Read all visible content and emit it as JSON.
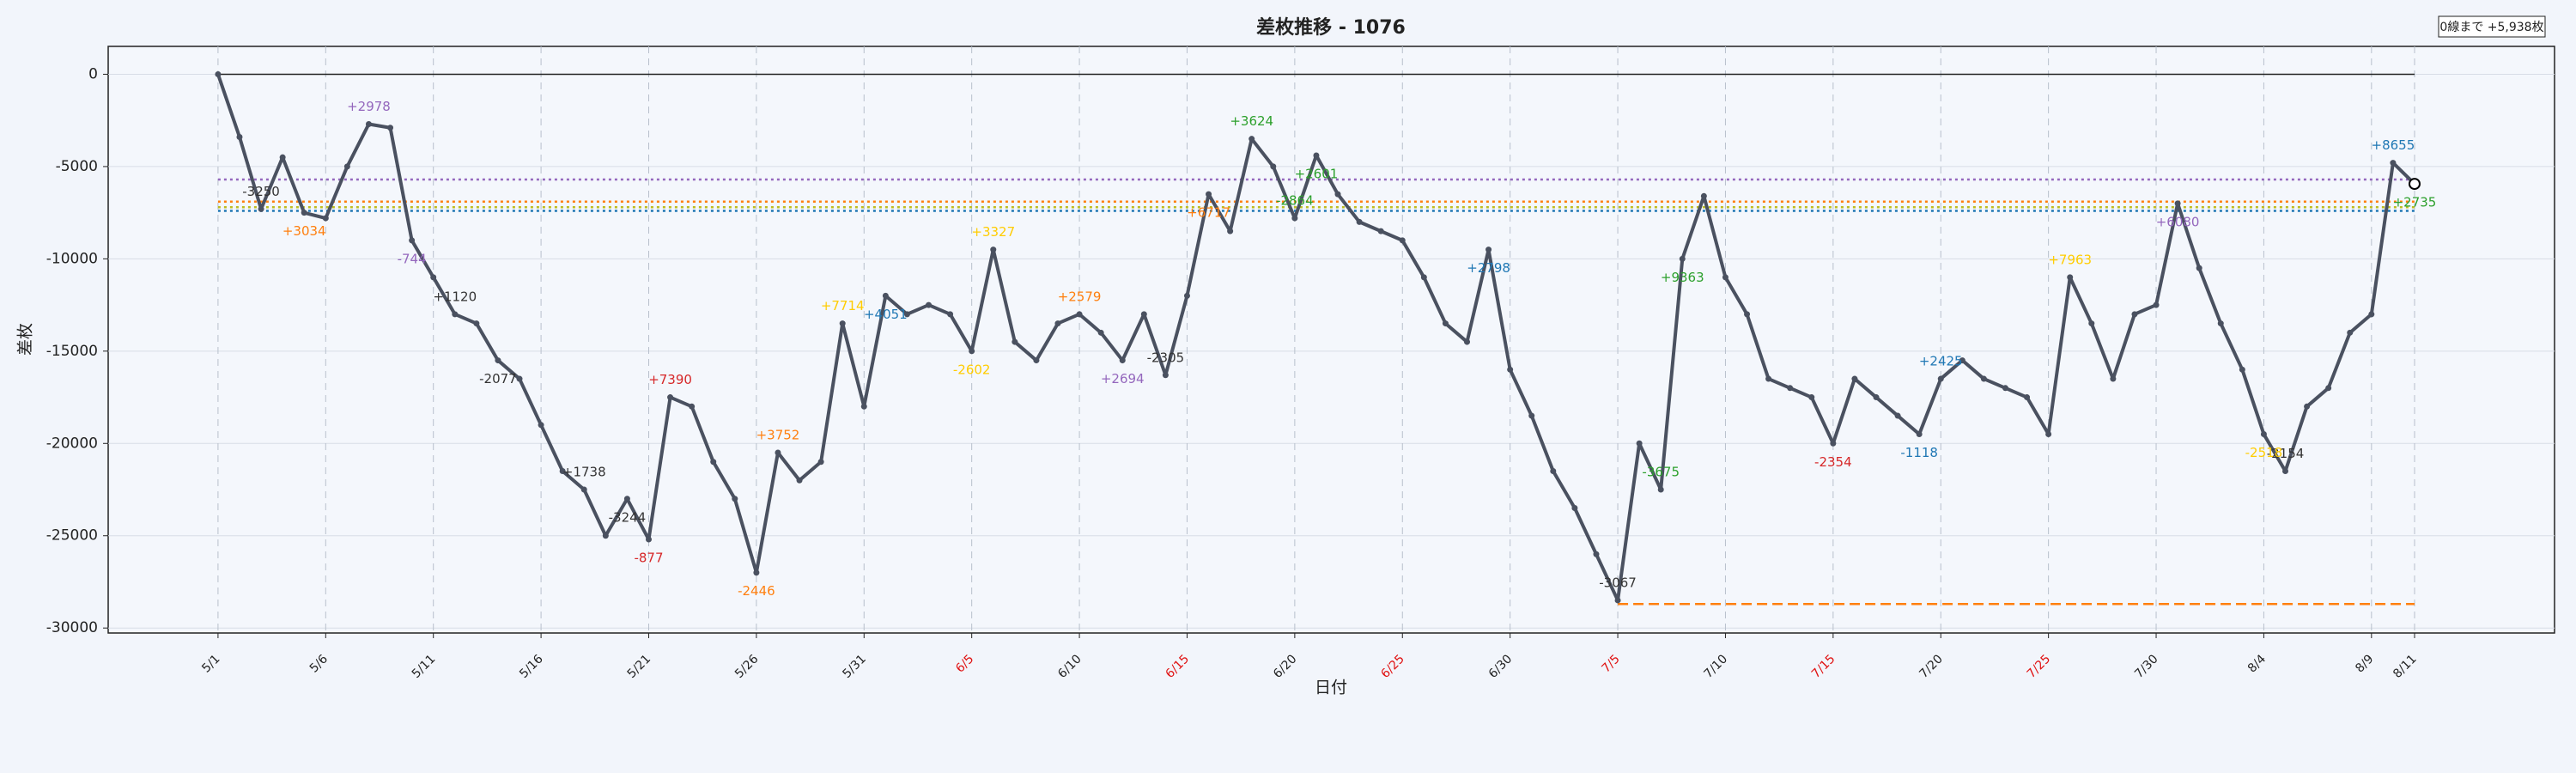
{
  "chart_data": {
    "type": "line",
    "title": "差枚推移 - 1076",
    "xlabel": "日付",
    "ylabel": "差枚",
    "note": "0線まで +5,938枚",
    "categories": [
      "5/1",
      null,
      null,
      null,
      null,
      "5/6",
      null,
      null,
      null,
      null,
      "5/11",
      null,
      null,
      null,
      null,
      "5/16",
      null,
      null,
      null,
      null,
      "5/21",
      null,
      null,
      null,
      null,
      "5/26",
      null,
      null,
      null,
      null,
      "5/31",
      null,
      null,
      null,
      null,
      "6/5",
      null,
      null,
      null,
      null,
      "6/10",
      null,
      null,
      null,
      null,
      "6/15",
      null,
      null,
      null,
      null,
      "6/20",
      null,
      null,
      null,
      null,
      "6/25",
      null,
      null,
      null,
      null,
      "6/30",
      null,
      null,
      null,
      null,
      "7/5",
      null,
      null,
      null,
      null,
      "7/10",
      null,
      null,
      null,
      null,
      "7/15",
      null,
      null,
      null,
      null,
      "7/20",
      null,
      null,
      null,
      null,
      "7/25",
      null,
      null,
      null,
      null,
      "7/30",
      null,
      null,
      null,
      null,
      "8/4",
      null,
      null,
      null,
      null,
      "8/9",
      null,
      "8/11"
    ],
    "highlighted_categories": [
      "6/5",
      "6/15",
      "6/25",
      "7/5",
      "7/15",
      "7/25"
    ],
    "highlight_color": "#e01010",
    "series": [
      {
        "name": "差枚",
        "color": "#4a5160",
        "values": [
          0,
          -3400,
          -7300,
          -4500,
          -7500,
          -7800,
          -5000,
          -2700,
          -2900,
          -9000,
          -11000,
          -13000,
          -13500,
          -15500,
          -16500,
          -19000,
          -21500,
          -22500,
          -25000,
          -23000,
          -25200,
          -17500,
          -18000,
          -21000,
          -23000,
          -27000,
          -20500,
          -22000,
          -21000,
          -13500,
          -18000,
          -12000,
          -13000,
          -12500,
          -13000,
          -15000,
          -9500,
          -14500,
          -15500,
          -13500,
          -13000,
          -14000,
          -15500,
          -13000,
          -16300,
          -12000,
          -6500,
          -8500,
          -3500,
          -5000,
          -7800,
          -4400,
          -6500,
          -8000,
          -8500,
          -9000,
          -11000,
          -13500,
          -14500,
          -9500,
          -16000,
          -18500,
          -21500,
          -23500,
          -26000,
          -28500,
          -20000,
          -22500,
          -10000,
          -6600,
          -11000,
          -13000,
          -16500,
          -17000,
          -17500,
          -20000,
          -16500,
          -17500,
          -18500,
          -19500,
          -16500,
          -15500,
          -16500,
          -17000,
          -17500,
          -19500,
          -11000,
          -13500,
          -16500,
          -13000,
          -12500,
          -7000,
          -10500,
          -13500,
          -16000,
          -19500,
          -21500,
          -18000,
          -17000,
          -14000,
          -13000,
          -4800,
          -5938
        ]
      }
    ],
    "annotations": [
      {
        "text": "-3250",
        "at": 2,
        "color": "#333333"
      },
      {
        "text": "+3034",
        "at": 4,
        "color": "#ff7f0e"
      },
      {
        "text": "+2978",
        "at": 7,
        "color": "#9467bd"
      },
      {
        "text": "-744",
        "at": 9,
        "color": "#9467bd"
      },
      {
        "text": "+1120",
        "at": 11,
        "color": "#333333"
      },
      {
        "text": "-2077",
        "at": 13,
        "color": "#333333"
      },
      {
        "text": "+1738",
        "at": 17,
        "color": "#333333"
      },
      {
        "text": "-3244",
        "at": 19,
        "color": "#333333"
      },
      {
        "text": "+7390",
        "at": 21,
        "color": "#d62728"
      },
      {
        "text": "-877",
        "at": 20,
        "color": "#d62728"
      },
      {
        "text": "+3752",
        "at": 26,
        "color": "#ff7f0e"
      },
      {
        "text": "-2446",
        "at": 25,
        "color": "#ff7f0e"
      },
      {
        "text": "+7714",
        "at": 29,
        "color": "#ffcc00"
      },
      {
        "text": "+4051",
        "at": 31,
        "color": "#1f77b4"
      },
      {
        "text": "+3327",
        "at": 36,
        "color": "#ffcc00"
      },
      {
        "text": "-2602",
        "at": 35,
        "color": "#ffcc00"
      },
      {
        "text": "+2579",
        "at": 40,
        "color": "#ff7f0e"
      },
      {
        "text": "+2694",
        "at": 42,
        "color": "#9467bd"
      },
      {
        "text": "-2305",
        "at": 44,
        "color": "#333333"
      },
      {
        "text": "+6717",
        "at": 46,
        "color": "#ff7f0e"
      },
      {
        "text": "+3624",
        "at": 48,
        "color": "#2ca02c"
      },
      {
        "text": "+2601",
        "at": 51,
        "color": "#2ca02c"
      },
      {
        "text": "-2864",
        "at": 50,
        "color": "#2ca02c"
      },
      {
        "text": "+2798",
        "at": 59,
        "color": "#1f77b4"
      },
      {
        "text": "-3067",
        "at": 65,
        "color": "#333333"
      },
      {
        "text": "+9363",
        "at": 68,
        "color": "#2ca02c"
      },
      {
        "text": "-3675",
        "at": 67,
        "color": "#2ca02c"
      },
      {
        "text": "-2354",
        "at": 75,
        "color": "#d62728"
      },
      {
        "text": "+2425",
        "at": 80,
        "color": "#1f77b4"
      },
      {
        "text": "-1118",
        "at": 79,
        "color": "#1f77b4"
      },
      {
        "text": "+7963",
        "at": 86,
        "color": "#ffcc00"
      },
      {
        "text": "+6080",
        "at": 91,
        "color": "#9467bd"
      },
      {
        "text": "-2154",
        "at": 96,
        "color": "#333333"
      },
      {
        "text": "-2518",
        "at": 95,
        "color": "#ffcc00"
      },
      {
        "text": "+8655",
        "at": 101,
        "color": "#1f77b4"
      },
      {
        "text": "+2735",
        "at": 102,
        "color": "#2ca02c"
      }
    ],
    "reference_lines": [
      {
        "value": 0,
        "color": "#222222",
        "style": "solid"
      },
      {
        "value": -5700,
        "color": "#9467bd",
        "style": "dotted"
      },
      {
        "value": -6900,
        "color": "#ff7f0e",
        "style": "dotted"
      },
      {
        "value": -7200,
        "color": "#bcbd22",
        "style": "dotted"
      },
      {
        "value": -7400,
        "color": "#1f77b4",
        "style": "dotted"
      },
      {
        "value": -28700,
        "color": "#ff7f0e",
        "style": "dashed",
        "from": 65
      }
    ],
    "ylim": [
      -30270,
      1510
    ],
    "yticks": [
      0,
      -5000,
      -10000,
      -15000,
      -20000,
      -25000,
      -30000
    ],
    "grid": true
  }
}
